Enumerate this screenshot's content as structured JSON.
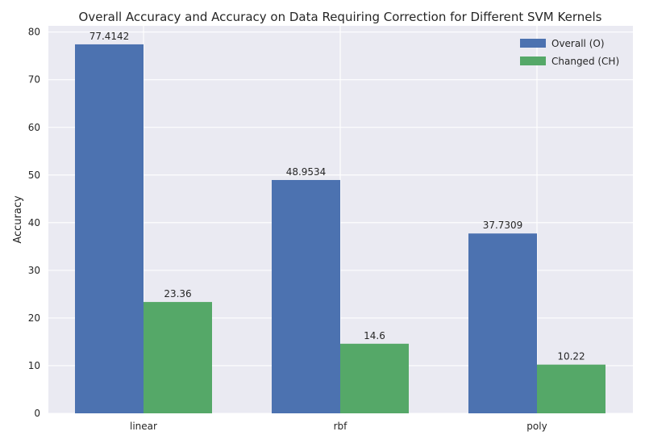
{
  "chart_data": {
    "type": "bar",
    "title": "Overall Accuracy and Accuracy on Data Requiring Correction for Different SVM Kernels",
    "xlabel": "",
    "ylabel": "Accuracy",
    "categories": [
      "linear",
      "rbf",
      "poly"
    ],
    "series": [
      {
        "name": "Overall (O)",
        "values": [
          77.4142,
          48.9534,
          37.7309
        ],
        "value_labels": [
          "77.4142",
          "48.9534",
          "37.7309"
        ],
        "color": "#4c72b0"
      },
      {
        "name": "Changed (CH)",
        "values": [
          23.36,
          14.6,
          10.22
        ],
        "value_labels": [
          "23.36",
          "14.6",
          "10.22"
        ],
        "color": "#55a868"
      }
    ],
    "ylim": [
      0,
      81.3
    ],
    "yticks": [
      0,
      10,
      20,
      30,
      40,
      50,
      60,
      70,
      80
    ],
    "grid": true,
    "legend_position": "top-right",
    "background_color": "#eaeaf2"
  }
}
